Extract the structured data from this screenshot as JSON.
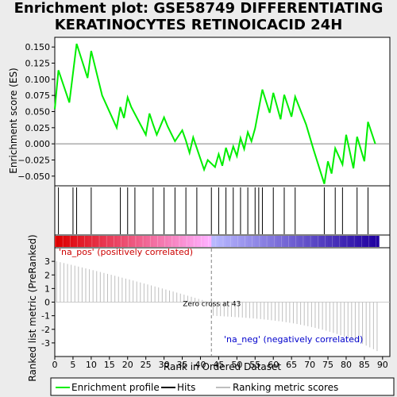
{
  "title_lines": [
    "Enrichment plot: GSE58749 DIFFERENTIATING",
    "KERATINOCYTES RETINOICACID 24H"
  ],
  "colors": {
    "es_line": "#00ee00",
    "hits": "#000000",
    "metric": "#bebebe",
    "pos_strong": "#dd0000",
    "pos_light": "#ffb0ff",
    "neg_light": "#b8b8ff",
    "neg_strong": "#2000a0",
    "zero_line": "#808080"
  },
  "chart_data": {
    "type": "line",
    "title": "Enrichment plot: GSE58749 DIFFERENTIATING KERATINOCYTES RETINOICACID 24H",
    "xlabel": "Rank in Ordered Dataset",
    "ylabel_top": "Enrichment score (ES)",
    "ylabel_bottom": "Ranked list metric (PreRanked)",
    "xlim": [
      0,
      92
    ],
    "xticks": [
      0,
      5,
      10,
      15,
      20,
      25,
      30,
      35,
      40,
      45,
      50,
      55,
      60,
      65,
      70,
      75,
      80,
      85,
      90
    ],
    "es_ylim": [
      -0.065,
      0.165
    ],
    "es_yticks": [
      -0.05,
      -0.025,
      0.0,
      0.025,
      0.05,
      0.075,
      0.1,
      0.125,
      0.15
    ],
    "es_ytick_labels": [
      "−0.050",
      "−0.025",
      "0.000",
      "0.025",
      "0.050",
      "0.075",
      "0.100",
      "0.125",
      "0.150"
    ],
    "metric_ylim": [
      -4,
      4
    ],
    "metric_yticks": [
      -3,
      -2,
      -1,
      0,
      1,
      2,
      3
    ],
    "metric_ytick_labels": [
      "-3",
      "-2",
      "-1",
      "0",
      "1",
      "2",
      "3"
    ],
    "es_x": [
      0,
      1,
      4,
      6,
      9,
      10,
      13,
      17,
      18,
      19,
      20,
      21,
      25,
      26,
      27,
      28,
      30,
      31,
      33,
      35,
      36,
      37,
      38,
      41,
      42,
      44,
      45,
      46,
      47,
      48,
      49,
      50,
      51,
      52,
      53,
      54,
      55,
      57,
      59,
      60,
      62,
      63,
      65,
      66,
      69,
      71,
      73,
      74,
      75,
      76,
      77,
      79,
      80,
      82,
      83,
      85,
      86,
      88
    ],
    "es_y": [
      0.054,
      0.114,
      0.064,
      0.155,
      0.102,
      0.144,
      0.075,
      0.025,
      0.057,
      0.04,
      0.072,
      0.057,
      0.014,
      0.047,
      0.03,
      0.014,
      0.041,
      0.027,
      0.004,
      0.021,
      0.005,
      -0.014,
      0.01,
      -0.04,
      -0.025,
      -0.036,
      -0.016,
      -0.034,
      -0.006,
      -0.024,
      -0.004,
      -0.019,
      0.009,
      -0.008,
      0.018,
      0.004,
      0.024,
      0.084,
      0.048,
      0.079,
      0.038,
      0.076,
      0.042,
      0.073,
      0.03,
      -0.008,
      -0.044,
      -0.062,
      -0.027,
      -0.046,
      -0.007,
      -0.032,
      0.014,
      -0.038,
      0.011,
      -0.027,
      0.034,
      0.0
    ],
    "hits": [
      1,
      5,
      6,
      10,
      18,
      20,
      22,
      27,
      30,
      33,
      36,
      39,
      43,
      45,
      47,
      49,
      51,
      53,
      55,
      56,
      57,
      60,
      63,
      66,
      74,
      77,
      79,
      83,
      86
    ],
    "zero_cross": 43,
    "zero_cross_label": "Zero cross at 43",
    "pos_label": "'na_pos' (positively correlated)",
    "neg_label": "'na_neg' (negatively correlated)",
    "metric_start": 3.0,
    "metric_end": -3.6,
    "n_genes": 89,
    "legend": [
      {
        "name": "Enrichment profile",
        "style": "green-line"
      },
      {
        "name": "Hits",
        "style": "black-line"
      },
      {
        "name": "Ranking metric scores",
        "style": "gray-line"
      }
    ]
  }
}
